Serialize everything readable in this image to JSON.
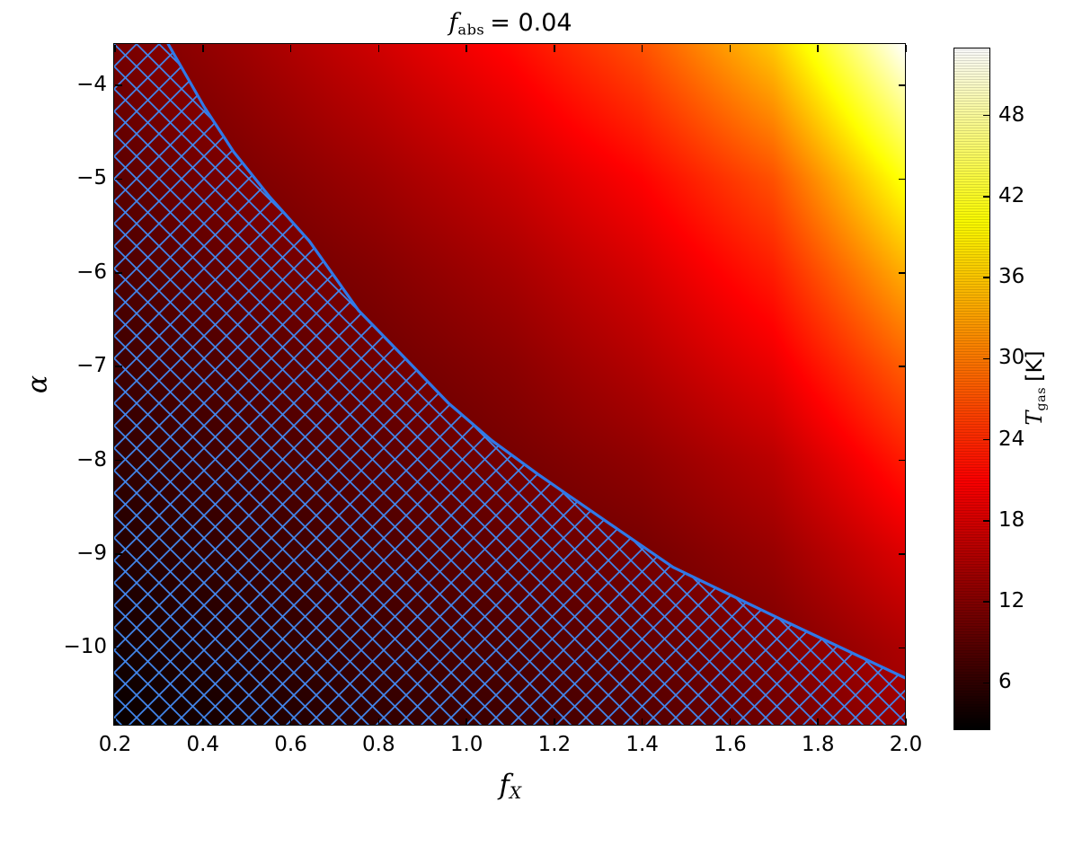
{
  "title": {
    "var": "f",
    "sub": "abs",
    "rest": "= 0.04"
  },
  "axes": {
    "xlabel": {
      "var": "f",
      "sub": "X"
    },
    "ylabel": {
      "var": "α"
    },
    "x_tick_labels": [
      "0.2",
      "0.4",
      "0.6",
      "0.8",
      "1.0",
      "1.2",
      "1.4",
      "1.6",
      "1.8",
      "2.0"
    ],
    "y_tick_labels": [
      "−4",
      "−5",
      "−6",
      "−7",
      "−8",
      "−9",
      "−10"
    ]
  },
  "colorbar": {
    "label": {
      "var": "T",
      "sub": "gas",
      "rest": "[K]"
    },
    "tick_labels": [
      "6",
      "12",
      "18",
      "24",
      "30",
      "36",
      "42",
      "48"
    ]
  },
  "chart_data": {
    "type": "heatmap",
    "title": "f_abs = 0.04",
    "xlabel": "f_X",
    "ylabel": "alpha",
    "colorbar_label": "T_gas [K]",
    "colormap": "hot",
    "x_range": [
      0.2,
      2.0
    ],
    "y_range": [
      -3.57,
      -10.83
    ],
    "color_range": [
      2.5,
      52.9
    ],
    "x_ticks": [
      0.2,
      0.4,
      0.6,
      0.8,
      1.0,
      1.2,
      1.4,
      1.6,
      1.8,
      2.0
    ],
    "y_ticks": [
      -4,
      -5,
      -6,
      -7,
      -8,
      -9,
      -10
    ],
    "colorbar_ticks": [
      6,
      12,
      18,
      24,
      30,
      36,
      42,
      48
    ],
    "grid_fx": [
      0.2,
      0.5,
      0.8,
      1.1,
      1.4,
      1.7,
      2.0
    ],
    "grid_alpha": [
      -3.57,
      -5,
      -6,
      -7,
      -8,
      -9,
      -10,
      -10.83
    ],
    "t_gas_values": [
      [
        11,
        14,
        17.5,
        21.5,
        27,
        36,
        53
      ],
      [
        9,
        11.5,
        14,
        17,
        21,
        27,
        41
      ],
      [
        8,
        10,
        12,
        14.5,
        18,
        23,
        34
      ],
      [
        7,
        8.5,
        10.5,
        12.5,
        15.5,
        19.5,
        28
      ],
      [
        6,
        7.5,
        9,
        11,
        13,
        16,
        23
      ],
      [
        5,
        6.5,
        8,
        9.5,
        11,
        13.5,
        18.5
      ],
      [
        4,
        5.5,
        7,
        8,
        9.5,
        11.5,
        15
      ],
      [
        3,
        4.5,
        6,
        7,
        8.5,
        10.5,
        13.5
      ]
    ],
    "hatch_boundary": [
      [
        0.323,
        -3.57
      ],
      [
        0.405,
        -4.24
      ],
      [
        0.472,
        -4.72
      ],
      [
        0.554,
        -5.2
      ],
      [
        0.644,
        -5.67
      ],
      [
        0.756,
        -6.41
      ],
      [
        0.891,
        -7.06
      ],
      [
        0.961,
        -7.4
      ],
      [
        1.06,
        -7.8
      ],
      [
        1.165,
        -8.16
      ],
      [
        1.329,
        -8.69
      ],
      [
        1.472,
        -9.15
      ],
      [
        1.724,
        -9.72
      ],
      [
        1.998,
        -10.33
      ]
    ],
    "hatch_region": "lower-left side of boundary",
    "hatch_spacing_px": 25,
    "colors": {
      "hatch": "#4186ec",
      "contour": "#3079e8",
      "axis": "#000000",
      "background": "#ffffff"
    }
  }
}
